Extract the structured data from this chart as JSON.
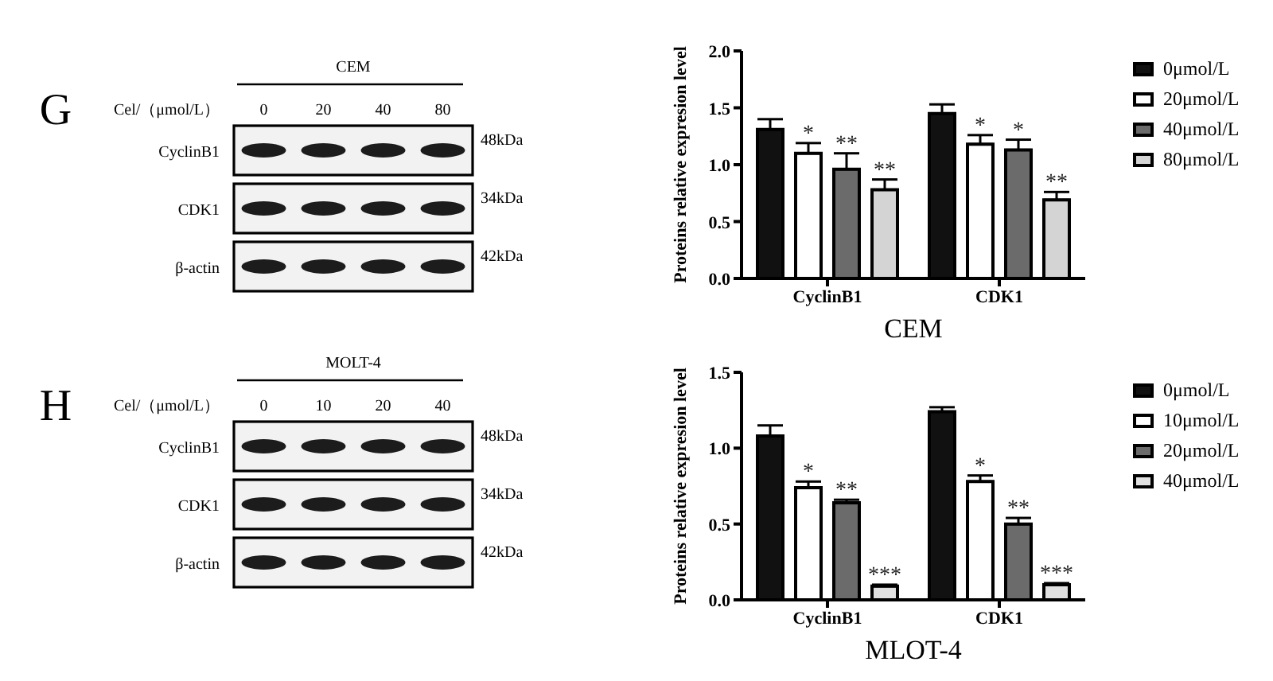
{
  "chart_data": [
    {
      "type": "other",
      "title": "CEM",
      "annotations": [
        "G"
      ],
      "xlabel": "Cel/（μmol/L）",
      "categories": [
        "0",
        "20",
        "40",
        "80"
      ],
      "y_categories": [
        "CyclinB1",
        "CDK1",
        "β-actin"
      ],
      "y2_categories": [
        "48kDa",
        "34kDa",
        "42kDa"
      ]
    },
    {
      "type": "bar",
      "xlabel": "CEM",
      "ylabel": "Proteins relative expresion level",
      "categories": [
        "CyclinB1",
        "CDK1"
      ],
      "series": [
        {
          "name": "0μmol/L",
          "color": "#111111",
          "values": [
            1.31,
            1.45
          ],
          "errors": [
            0.09,
            0.08
          ]
        },
        {
          "name": "20μmol/L",
          "color": "#ffffff",
          "values": [
            1.1,
            1.18
          ],
          "errors": [
            0.09,
            0.08
          ],
          "value_labels": [
            "*",
            "*"
          ]
        },
        {
          "name": "40μmol/L",
          "color": "#6b6b6b",
          "values": [
            0.96,
            1.13
          ],
          "errors": [
            0.14,
            0.09
          ],
          "value_labels": [
            "**",
            "*"
          ]
        },
        {
          "name": "80μmol/L",
          "color": "#d4d4d4",
          "values": [
            0.78,
            0.69
          ],
          "errors": [
            0.09,
            0.07
          ],
          "value_labels": [
            "**",
            "**"
          ]
        }
      ],
      "ylim": [
        0,
        2
      ],
      "yticks": [
        {
          "value": 0,
          "label": "0.0"
        },
        {
          "value": 0.5,
          "label": "0.5"
        },
        {
          "value": 1,
          "label": "1.0"
        },
        {
          "value": 1.5,
          "label": "1.5"
        },
        {
          "value": 2,
          "label": "2.0"
        }
      ],
      "legend": "right"
    },
    {
      "type": "other",
      "title": "MOLT-4",
      "annotations": [
        "H"
      ],
      "xlabel": "Cel/（μmol/L）",
      "categories": [
        "0",
        "10",
        "20",
        "40"
      ],
      "y_categories": [
        "CyclinB1",
        "CDK1",
        "β-actin"
      ],
      "y2_categories": [
        "48kDa",
        "34kDa",
        "42kDa"
      ]
    },
    {
      "type": "bar",
      "xlabel": "MLOT-4",
      "ylabel": "Proteins relative expresion level",
      "categories": [
        "CyclinB1",
        "CDK1"
      ],
      "series": [
        {
          "name": "0μmol/L",
          "color": "#111111",
          "values": [
            1.08,
            1.24
          ],
          "errors": [
            0.07,
            0.03
          ]
        },
        {
          "name": "10μmol/L",
          "color": "#ffffff",
          "values": [
            0.74,
            0.78
          ],
          "errors": [
            0.04,
            0.04
          ],
          "value_labels": [
            "*",
            "*"
          ]
        },
        {
          "name": "20μmol/L",
          "color": "#6b6b6b",
          "values": [
            0.64,
            0.5
          ],
          "errors": [
            0.02,
            0.04
          ],
          "value_labels": [
            "**",
            "**"
          ]
        },
        {
          "name": "40μmol/L",
          "color": "#e0e0e0",
          "values": [
            0.09,
            0.1
          ],
          "errors": [
            0.01,
            0.01
          ],
          "value_labels": [
            "***",
            "***"
          ]
        }
      ],
      "ylim": [
        0,
        1.5
      ],
      "yticks": [
        {
          "value": 0,
          "label": "0.0"
        },
        {
          "value": 0.5,
          "label": "0.5"
        },
        {
          "value": 1,
          "label": "1.0"
        },
        {
          "value": 1.5,
          "label": "1.5"
        }
      ],
      "legend": "right"
    }
  ]
}
